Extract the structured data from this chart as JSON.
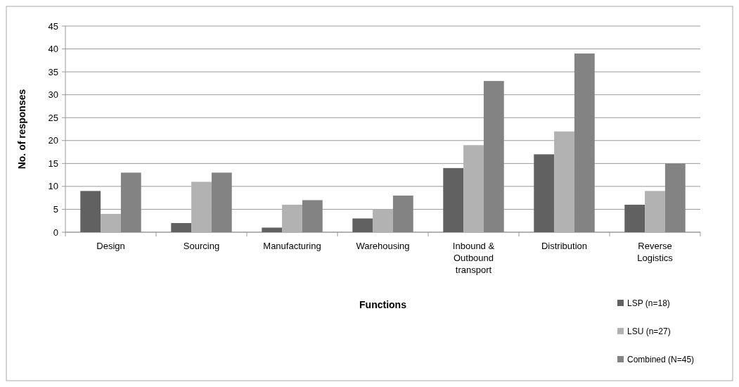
{
  "chart_data": {
    "type": "bar",
    "xlabel": "Functions",
    "ylabel": "No. of responses",
    "categories": [
      "Design",
      "Sourcing",
      "Manufacturing",
      "Warehousing",
      "Inbound & Outbound transport",
      "Distribution",
      "Reverse Logistics"
    ],
    "series": [
      {
        "name": "LSP (n=18)",
        "color": "#616161",
        "values": [
          9,
          2,
          1,
          3,
          14,
          17,
          6
        ]
      },
      {
        "name": "LSU (n=27)",
        "color": "#b2b2b2",
        "values": [
          4,
          11,
          6,
          5,
          19,
          22,
          9
        ]
      },
      {
        "name": "Combined (N=45)",
        "color": "#838383",
        "values": [
          13,
          13,
          7,
          8,
          33,
          39,
          15
        ]
      }
    ],
    "ylim": [
      0,
      45
    ],
    "yticks": [
      0,
      5,
      10,
      15,
      20,
      25,
      30,
      35,
      40,
      45
    ],
    "grid": "y",
    "legend": "bottom right"
  }
}
